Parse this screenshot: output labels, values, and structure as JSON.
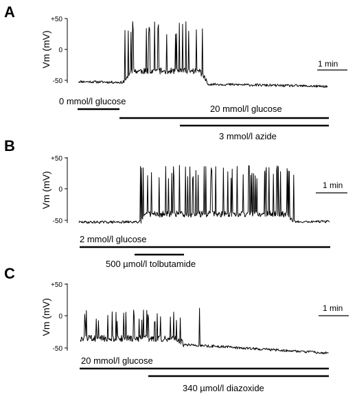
{
  "chart_data": [
    {
      "type": "line",
      "panel": "A",
      "ylabel": "Vm (mV)",
      "yticks": [
        "+50",
        "0",
        "-50"
      ],
      "ylim": [
        -60,
        55
      ],
      "scale_bar": "1 min",
      "trace": {
        "baseline_start": -52,
        "baseline_end": -60,
        "burst_start": 0.18,
        "burst_end": 0.52,
        "plateau": -35,
        "spike_peak": 45,
        "late_spikes": 0
      },
      "bars": [
        {
          "label": "0 mmol/l glucose"
        },
        {
          "label": "20 mmol/l glucose"
        },
        {
          "label": "3 mmol/l azide"
        }
      ]
    },
    {
      "type": "line",
      "panel": "B",
      "ylabel": "Vm (mV)",
      "yticks": [
        "+50",
        "0",
        "-50"
      ],
      "ylim": [
        -60,
        55
      ],
      "scale_bar": "1 min",
      "trace": {
        "baseline_start": -53,
        "baseline_end": -52,
        "burst_start": 0.24,
        "burst_end": 0.86,
        "plateau": -40,
        "spike_peak": 38,
        "late_spikes": 0
      },
      "bars": [
        {
          "label": "2 mmol/l glucose"
        },
        {
          "label": "500 µmol/l tolbutamide"
        }
      ]
    },
    {
      "type": "line",
      "panel": "C",
      "ylabel": "Vm (mV)",
      "yticks": [
        "+50",
        "0",
        "-50"
      ],
      "ylim": [
        -60,
        55
      ],
      "scale_bar": "1 min",
      "trace": {
        "baseline_start": -35,
        "baseline_end": -58,
        "burst_start": 0.0,
        "burst_end": 0.42,
        "plateau": -35,
        "spike_peak": 12,
        "late_spikes": 1
      },
      "bars": [
        {
          "label": "20 mmol/l glucose"
        },
        {
          "label": "340 µmol/l diazoxide"
        }
      ]
    }
  ]
}
